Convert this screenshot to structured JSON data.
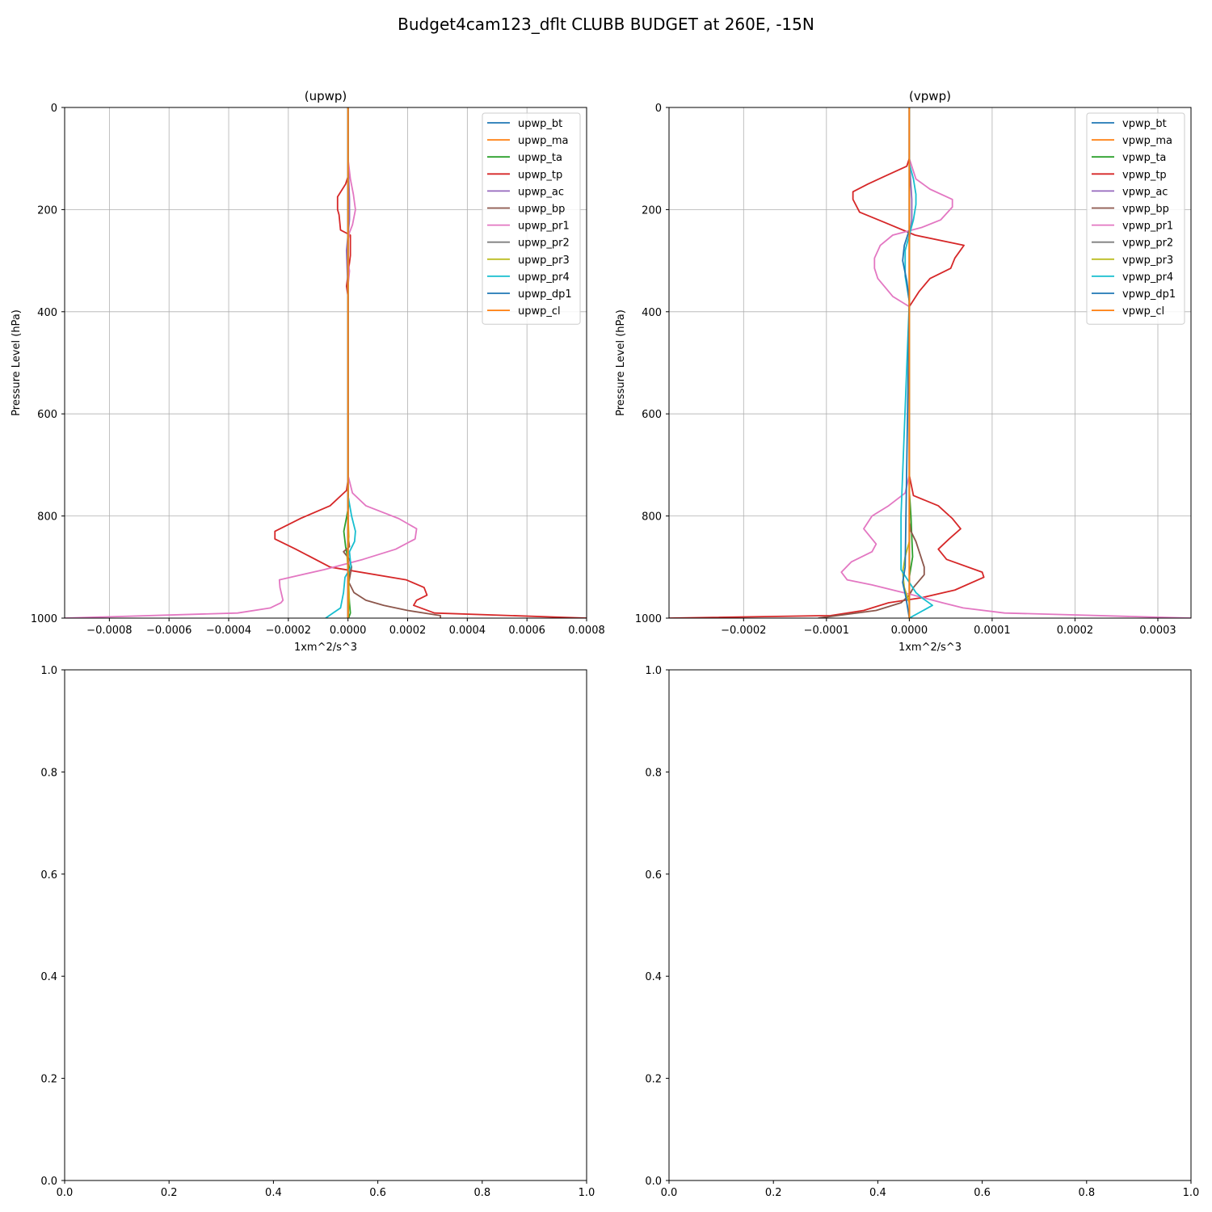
{
  "figure_title": "Budget4cam123_dflt CLUBB BUDGET at 260E, -15N",
  "colors": {
    "bt": "#1f77b4",
    "ma": "#ff7f0e",
    "ta": "#2ca02c",
    "tp": "#d62728",
    "ac": "#9467bd",
    "bp": "#8c564b",
    "pr1": "#e377c2",
    "pr2": "#7f7f7f",
    "pr3": "#bcbd22",
    "pr4": "#17becf",
    "dp1": "#1f77b4",
    "cl": "#ff7f0e"
  },
  "chart_data": [
    {
      "type": "line",
      "title": "(upwp)",
      "xlabel": "1xm^2/s^3",
      "ylabel": "Pressure Level (hPa)",
      "xlim": [
        -0.00095,
        0.0008
      ],
      "ylim": [
        1000,
        0
      ],
      "xticks": [
        -0.0008,
        -0.0006,
        -0.0004,
        -0.0002,
        0.0,
        0.0002,
        0.0004,
        0.0006,
        0.0008
      ],
      "xtick_labels": [
        "−0.0008",
        "−0.0006",
        "−0.0004",
        "−0.0002",
        "0.0000",
        "0.0002",
        "0.0004",
        "0.0006",
        "0.0008"
      ],
      "yticks": [
        0,
        200,
        400,
        600,
        800,
        1000
      ],
      "ytick_labels": [
        "0",
        "200",
        "400",
        "600",
        "800",
        "1000"
      ],
      "grid": true,
      "legend_position": "top-right",
      "series": [
        {
          "name": "upwp_bt",
          "key": "bt",
          "x": [
            0,
            0,
            0,
            0
          ],
          "y": [
            0,
            500,
            990,
            1000
          ]
        },
        {
          "name": "upwp_ma",
          "key": "ma",
          "x": [
            0,
            0,
            0,
            0
          ],
          "y": [
            0,
            500,
            990,
            1000
          ]
        },
        {
          "name": "upwp_ta",
          "key": "ta",
          "x": [
            0,
            0,
            2e-06,
            -4e-06,
            -1.4e-05,
            -8e-06,
            4e-06,
            2e-06,
            5e-06,
            8e-06,
            2e-06
          ],
          "y": [
            0,
            740,
            780,
            800,
            830,
            860,
            900,
            940,
            970,
            990,
            1000
          ]
        },
        {
          "name": "upwp_tp",
          "key": "tp",
          "x": [
            0,
            0,
            3e-06,
            -8e-06,
            -3.5e-05,
            -3.5e-05,
            -3e-05,
            -2.5e-05,
            8e-06,
            8e-06,
            -5e-06,
            0,
            0,
            -5e-06,
            -6e-05,
            -0.00016,
            -0.000245,
            -0.000245,
            -0.000175,
            -6e-05,
            0.000195,
            0.000255,
            0.000265,
            0.00023,
            0.00022,
            0.00029,
            0.0008
          ],
          "y": [
            0,
            100,
            130,
            150,
            175,
            200,
            210,
            240,
            250,
            290,
            350,
            370,
            730,
            750,
            780,
            805,
            830,
            845,
            865,
            900,
            925,
            940,
            955,
            965,
            975,
            990,
            1000
          ]
        },
        {
          "name": "upwp_ac",
          "key": "ac",
          "x": [
            0,
            0,
            5e-06,
            5e-06,
            0,
            -5e-06,
            0,
            0
          ],
          "y": [
            0,
            100,
            180,
            220,
            250,
            280,
            360,
            1000
          ]
        },
        {
          "name": "upwp_bp",
          "key": "bp",
          "x": [
            0,
            0,
            5e-06,
            -1.5e-05,
            5e-06,
            1.2e-05,
            3e-06,
            2e-05,
            6e-05,
            0.00012,
            0.0002,
            0.00031,
            0.00031
          ],
          "y": [
            0,
            840,
            860,
            870,
            885,
            900,
            930,
            950,
            965,
            975,
            985,
            995,
            1000
          ]
        },
        {
          "name": "upwp_pr1",
          "key": "pr1",
          "x": [
            0,
            0,
            8e-06,
            1.8e-05,
            2.5e-05,
            1.5e-05,
            5e-06,
            0,
            0,
            5e-06,
            0,
            0,
            1.5e-05,
            6e-05,
            0.00017,
            0.00023,
            0.000225,
            0.00016,
            5e-05,
            -8e-05,
            -0.00023,
            -0.000228,
            -0.000218,
            -0.000225,
            -0.00026,
            -0.00037,
            -0.00095
          ],
          "y": [
            0,
            100,
            140,
            170,
            200,
            230,
            245,
            260,
            300,
            320,
            350,
            720,
            755,
            780,
            805,
            825,
            845,
            865,
            885,
            905,
            925,
            940,
            965,
            970,
            980,
            990,
            1000
          ]
        },
        {
          "name": "upwp_pr2",
          "key": "pr2",
          "x": [
            0,
            0,
            0
          ],
          "y": [
            0,
            990,
            1000
          ]
        },
        {
          "name": "upwp_pr3",
          "key": "pr3",
          "x": [
            0,
            0,
            3e-06,
            -3e-06,
            2e-06,
            4e-06,
            0
          ],
          "y": [
            0,
            800,
            840,
            880,
            920,
            960,
            1000
          ]
        },
        {
          "name": "upwp_pr4",
          "key": "pr4",
          "x": [
            0,
            0,
            1.2e-05,
            2.5e-05,
            2.2e-05,
            5e-06,
            1e-05,
            -1e-05,
            -1.5e-05,
            -2.5e-05,
            -5e-05,
            -7.5e-05
          ],
          "y": [
            0,
            760,
            800,
            830,
            850,
            870,
            900,
            920,
            950,
            980,
            990,
            1000
          ]
        },
        {
          "name": "upwp_dp1",
          "key": "dp1",
          "x": [
            0,
            0,
            0
          ],
          "y": [
            0,
            990,
            1000
          ]
        },
        {
          "name": "upwp_cl",
          "key": "cl",
          "x": [
            0,
            0,
            0
          ],
          "y": [
            0,
            990,
            1000
          ]
        }
      ]
    },
    {
      "type": "line",
      "title": "(vpwp)",
      "xlabel": "1xm^2/s^3",
      "ylabel": "Pressure Level (hPa)",
      "xlim": [
        -0.00029,
        0.00034
      ],
      "ylim": [
        1000,
        0
      ],
      "xticks": [
        -0.0002,
        -0.0001,
        0.0,
        0.0001,
        0.0002,
        0.0003
      ],
      "xtick_labels": [
        "−0.0002",
        "−0.0001",
        "0.0000",
        "0.0001",
        "0.0002",
        "0.0003"
      ],
      "yticks": [
        0,
        200,
        400,
        600,
        800,
        1000
      ],
      "ytick_labels": [
        "0",
        "200",
        "400",
        "600",
        "800",
        "1000"
      ],
      "grid": true,
      "legend_position": "top-right",
      "series": [
        {
          "name": "vpwp_bt",
          "key": "bt",
          "x": [
            0,
            0,
            0
          ],
          "y": [
            0,
            990,
            1000
          ]
        },
        {
          "name": "vpwp_ma",
          "key": "ma",
          "x": [
            0,
            0,
            0
          ],
          "y": [
            0,
            990,
            1000
          ]
        },
        {
          "name": "vpwp_ta",
          "key": "ta",
          "x": [
            0,
            0,
            2e-06,
            3e-06,
            4e-06,
            0,
            0
          ],
          "y": [
            0,
            750,
            800,
            840,
            880,
            920,
            1000
          ]
        },
        {
          "name": "vpwp_tp",
          "key": "tp",
          "x": [
            0,
            0,
            -3e-06,
            -3e-05,
            -5e-05,
            -6.8e-05,
            -6.8e-05,
            -6e-05,
            -3e-05,
            7e-06,
            6.6e-05,
            5.5e-05,
            5e-05,
            2.5e-05,
            1.2e-05,
            0,
            0,
            5e-06,
            3.5e-05,
            5.2e-05,
            6.2e-05,
            4.8e-05,
            3.5e-05,
            4.5e-05,
            8.8e-05,
            9e-05,
            5.5e-05,
            1.5e-05,
            -2.5e-05,
            -5.5e-05,
            -9.5e-05,
            -0.00029
          ],
          "y": [
            0,
            100,
            115,
            135,
            150,
            165,
            180,
            205,
            225,
            250,
            270,
            295,
            315,
            335,
            360,
            390,
            720,
            760,
            780,
            805,
            825,
            845,
            865,
            885,
            910,
            920,
            945,
            960,
            970,
            985,
            995,
            1000
          ]
        },
        {
          "name": "vpwp_ac",
          "key": "ac",
          "x": [
            0,
            0,
            3e-06,
            3e-06,
            0,
            0,
            0
          ],
          "y": [
            0,
            100,
            180,
            220,
            260,
            360,
            1000
          ]
        },
        {
          "name": "vpwp_bp",
          "key": "bp",
          "x": [
            0,
            0,
            2e-06,
            8e-06,
            1.2e-05,
            1.8e-05,
            1.8e-05,
            5e-06,
            0,
            -1e-05,
            -4e-05,
            -0.00011
          ],
          "y": [
            0,
            810,
            830,
            850,
            870,
            900,
            915,
            940,
            955,
            970,
            985,
            1000
          ]
        },
        {
          "name": "vpwp_pr1",
          "key": "pr1",
          "x": [
            0,
            0,
            8e-06,
            2.5e-05,
            5.2e-05,
            5.2e-05,
            3.8e-05,
            1.5e-05,
            -2e-05,
            -3.5e-05,
            -4.2e-05,
            -4.2e-05,
            -3.8e-05,
            -2e-05,
            0,
            0,
            -5e-06,
            -2.5e-05,
            -4.5e-05,
            -5.5e-05,
            -4e-05,
            -4.5e-05,
            -7e-05,
            -8.2e-05,
            -7.5e-05,
            -4.5e-05,
            5e-06,
            4e-05,
            6.5e-05,
            0.000115,
            0.00034
          ],
          "y": [
            0,
            100,
            140,
            160,
            180,
            195,
            220,
            235,
            250,
            270,
            295,
            315,
            335,
            370,
            390,
            720,
            755,
            780,
            800,
            825,
            855,
            870,
            890,
            910,
            925,
            935,
            955,
            970,
            980,
            990,
            1000
          ]
        },
        {
          "name": "vpwp_pr2",
          "key": "pr2",
          "x": [
            0,
            0,
            0
          ],
          "y": [
            0,
            990,
            1000
          ]
        },
        {
          "name": "vpwp_pr3",
          "key": "pr3",
          "x": [
            0,
            0,
            -5e-06,
            -8e-06,
            -6e-06,
            0,
            0
          ],
          "y": [
            0,
            850,
            880,
            910,
            940,
            970,
            1000
          ]
        },
        {
          "name": "vpwp_pr4",
          "key": "pr4",
          "x": [
            0,
            0,
            5e-06,
            8e-06,
            8e-06,
            5e-06,
            0,
            -5e-06,
            -5e-06,
            0,
            -1e-05,
            -1e-05,
            0,
            8e-06,
            1.5e-05,
            2.8e-05,
            0
          ],
          "y": [
            0,
            110,
            140,
            170,
            190,
            220,
            250,
            280,
            330,
            380,
            800,
            905,
            930,
            950,
            960,
            975,
            1000
          ]
        },
        {
          "name": "vpwp_dp1",
          "key": "dp1",
          "x": [
            0,
            0,
            -6e-06,
            -8e-06,
            -3e-06,
            0,
            -5e-06,
            -8e-06,
            -4e-06,
            0
          ],
          "y": [
            0,
            240,
            270,
            300,
            340,
            380,
            900,
            930,
            960,
            1000
          ]
        },
        {
          "name": "vpwp_cl",
          "key": "cl",
          "x": [
            0,
            0,
            0
          ],
          "y": [
            0,
            990,
            1000
          ]
        }
      ]
    },
    {
      "type": "line",
      "title": "",
      "xlabel": "",
      "ylabel": "",
      "xlim": [
        0,
        1
      ],
      "ylim": [
        0,
        1
      ],
      "xticks": [
        0,
        0.2,
        0.4,
        0.6,
        0.8,
        1
      ],
      "xtick_labels": [
        "0.0",
        "0.2",
        "0.4",
        "0.6",
        "0.8",
        "1.0"
      ],
      "yticks": [
        0,
        0.2,
        0.4,
        0.6,
        0.8,
        1
      ],
      "ytick_labels": [
        "0.0",
        "0.2",
        "0.4",
        "0.6",
        "0.8",
        "1.0"
      ],
      "grid": false,
      "series": []
    },
    {
      "type": "line",
      "title": "",
      "xlabel": "",
      "ylabel": "",
      "xlim": [
        0,
        1
      ],
      "ylim": [
        0,
        1
      ],
      "xticks": [
        0,
        0.2,
        0.4,
        0.6,
        0.8,
        1
      ],
      "xtick_labels": [
        "0.0",
        "0.2",
        "0.4",
        "0.6",
        "0.8",
        "1.0"
      ],
      "yticks": [
        0,
        0.2,
        0.4,
        0.6,
        0.8,
        1
      ],
      "ytick_labels": [
        "0.0",
        "0.2",
        "0.4",
        "0.6",
        "0.8",
        "1.0"
      ],
      "grid": false,
      "series": []
    }
  ]
}
